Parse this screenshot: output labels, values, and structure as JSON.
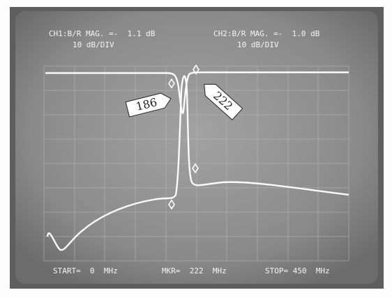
{
  "header": {
    "ch1": "CH1:B/R MAG. =-  1.1 dB",
    "ch1_scale": "10 dB/DIV",
    "ch2": "CH2:B/R MAG. =-  1.0 dB",
    "ch2_scale": "10 dB/DIV"
  },
  "markers": [
    "186",
    "222"
  ],
  "footer": {
    "start": "START=  0  MHz",
    "marker": "MKR=  222  MHz",
    "stop": "STOP= 450  MHz"
  }
}
